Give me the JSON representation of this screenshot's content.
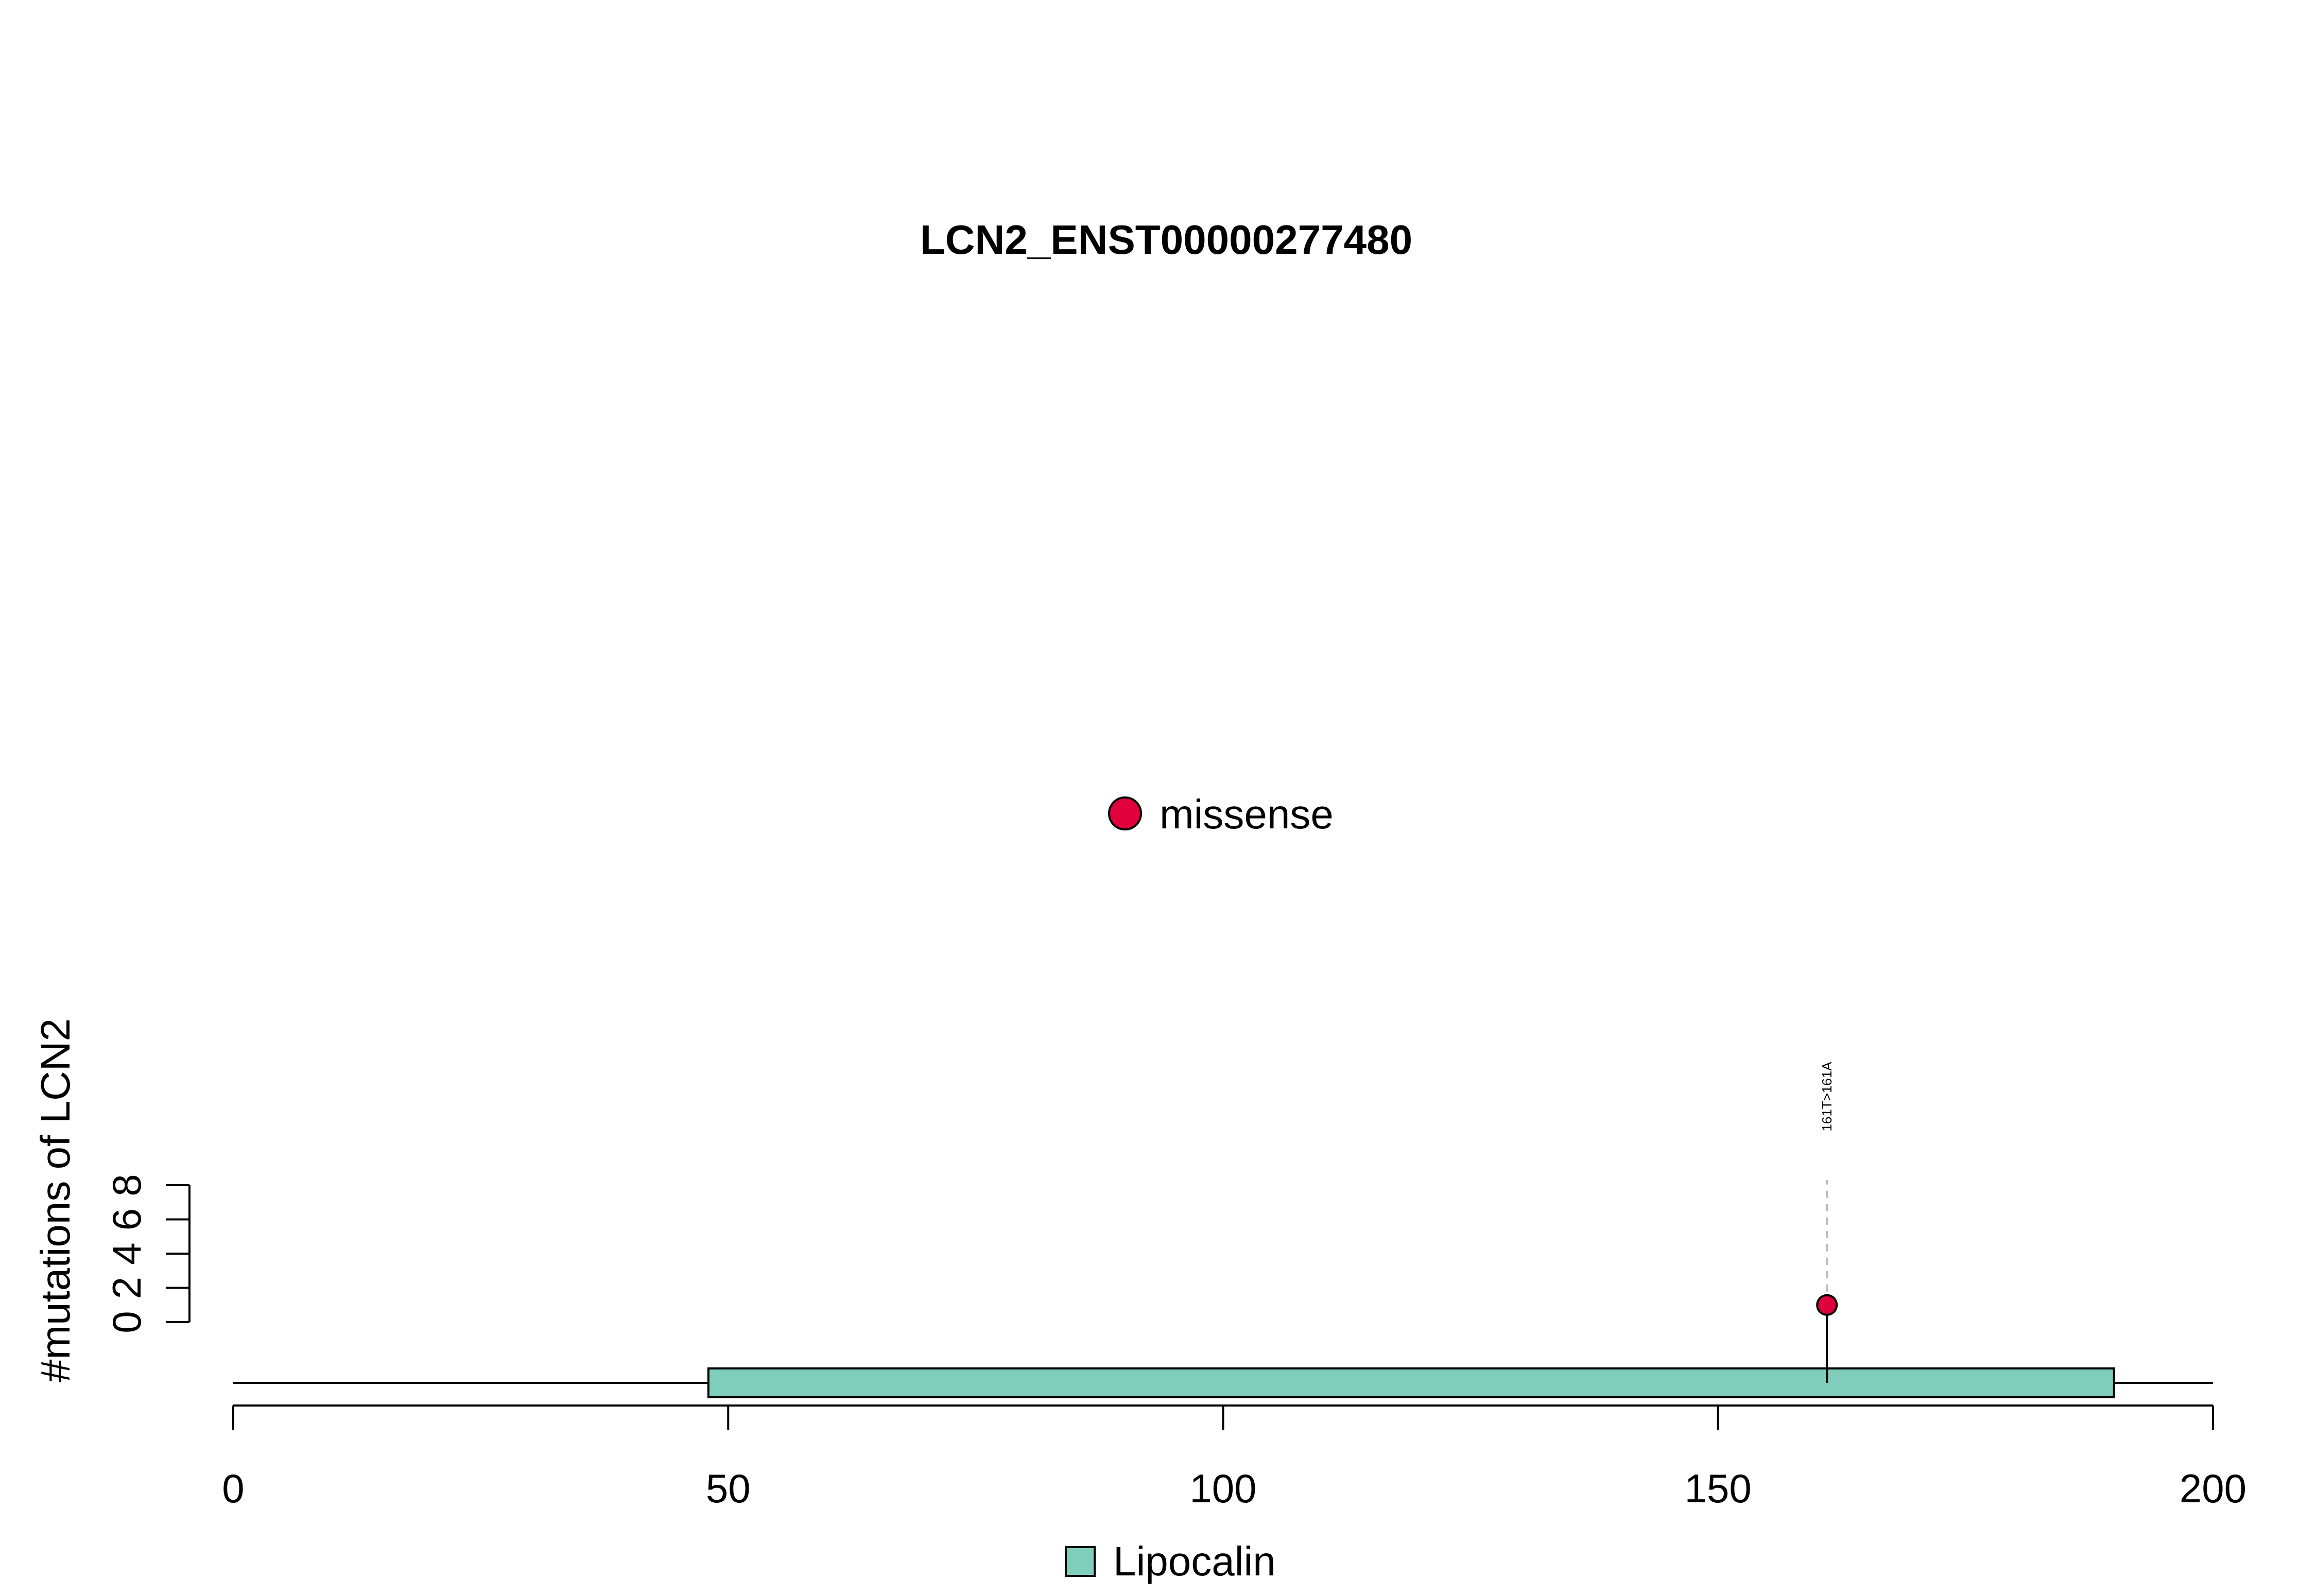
{
  "chart_data": {
    "type": "scatter",
    "subtype": "lollipop",
    "title": "LCN2_ENST00000277480",
    "ylabel": "#mutations of LCN2",
    "xlabel": "",
    "xlim": [
      0,
      200
    ],
    "x_ticks": [
      0,
      50,
      100,
      150,
      200
    ],
    "ylim": [
      0,
      8
    ],
    "y_ticks": [
      0,
      2,
      4,
      6,
      8
    ],
    "protein_length": 200,
    "domains": [
      {
        "name": "Lipocalin",
        "start": 48,
        "end": 190,
        "color": "#7fcdbb"
      }
    ],
    "mutations": [
      {
        "position": 161,
        "count": 1,
        "label": "161T>161A",
        "type": "missense",
        "color": "#e0003c"
      }
    ],
    "mutation_legend": [
      {
        "label": "missense",
        "color": "#e0003c"
      }
    ],
    "domain_legend": [
      {
        "label": "Lipocalin",
        "color": "#7fcdbb"
      }
    ],
    "grid": false
  }
}
